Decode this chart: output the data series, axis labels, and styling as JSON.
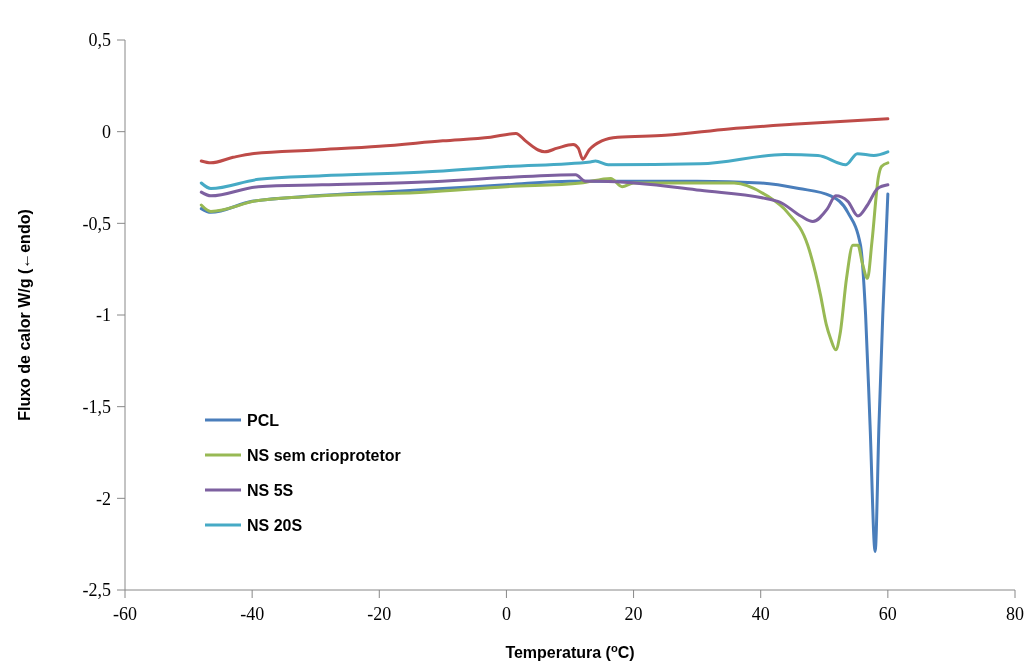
{
  "chart_data": {
    "type": "line",
    "xlabel": "Temperatura ($^{o}$C)",
    "ylabel": "Fluxo de calor W/g (←endo)",
    "xlim": [
      -60,
      80
    ],
    "xticks": [
      -60,
      -40,
      -20,
      0,
      20,
      40,
      60,
      80
    ],
    "ylim": [
      -2.5,
      0.5
    ],
    "yticks": [
      {
        "value": -2.5,
        "label": "-2,5"
      },
      {
        "value": -2,
        "label": "-2"
      },
      {
        "value": -1.5,
        "label": "-1,5"
      },
      {
        "value": -1,
        "label": "-1"
      },
      {
        "value": -0.5,
        "label": "-0,5"
      },
      {
        "value": 0,
        "label": "0"
      },
      {
        "value": 0.5,
        "label": "0,5"
      }
    ],
    "grid": false,
    "legend": "bottom left",
    "marker": "none",
    "line_style": "solid",
    "series": [
      {
        "name": "PCL",
        "color": "#4a7ebb",
        "x": [
          -48,
          -46.5,
          -40,
          -30,
          -20,
          -10,
          0,
          10,
          20,
          30,
          40,
          46,
          51,
          53.7,
          55.7,
          56.5,
          57.2,
          58,
          58.6,
          59.2,
          60
        ],
        "values": [
          -0.42,
          -0.44,
          -0.38,
          -0.35,
          -0.33,
          -0.31,
          -0.29,
          -0.27,
          -0.27,
          -0.27,
          -0.28,
          -0.31,
          -0.35,
          -0.44,
          -0.62,
          -1.0,
          -1.6,
          -2.29,
          -1.6,
          -1.0,
          -0.34
        ]
      },
      {
        "color": "#be4b48",
        "x": [
          -48,
          -46.5,
          -43,
          -40,
          -30,
          -20,
          -10,
          -2.5,
          1.5,
          3,
          5,
          6,
          8,
          10.5,
          11.3,
          12,
          13,
          15,
          17.5,
          25,
          35,
          45,
          60
        ],
        "values": [
          -0.16,
          -0.17,
          -0.14,
          -0.12,
          -0.1,
          -0.08,
          -0.05,
          -0.03,
          -0.01,
          -0.05,
          -0.1,
          -0.11,
          -0.09,
          -0.07,
          -0.09,
          -0.15,
          -0.1,
          -0.05,
          -0.03,
          -0.02,
          0.015,
          0.04,
          0.07
        ]
      },
      {
        "name": "NS sem crioprotetor",
        "color": "#98b954",
        "x": [
          -48,
          -46.5,
          -39,
          -29,
          -13,
          0,
          11.7,
          16.4,
          18.2,
          20,
          35.8,
          41,
          44.2,
          47.4,
          49.4,
          50.3,
          51,
          51.8,
          52.5,
          53.5,
          54.5,
          55.3,
          56,
          56.8,
          57.5,
          58.5,
          59,
          60
        ],
        "values": [
          -0.4,
          -0.435,
          -0.375,
          -0.35,
          -0.33,
          -0.3,
          -0.28,
          -0.255,
          -0.3,
          -0.28,
          -0.28,
          -0.35,
          -0.44,
          -0.62,
          -0.89,
          -1.05,
          -1.13,
          -1.19,
          -1.1,
          -0.8,
          -0.62,
          -0.62,
          -0.72,
          -0.8,
          -0.6,
          -0.25,
          -0.19,
          -0.17
        ]
      },
      {
        "name": "NS 5S",
        "color": "#7d60a0",
        "x": [
          -48,
          -46.5,
          -39,
          -29,
          -13,
          0,
          10.9,
          12.4,
          14.8,
          30.5,
          42.7,
          46.3,
          48.2,
          50.5,
          51.8,
          53.7,
          55.3,
          56.8,
          58.4,
          60
        ],
        "values": [
          -0.33,
          -0.35,
          -0.3,
          -0.29,
          -0.275,
          -0.25,
          -0.235,
          -0.27,
          -0.27,
          -0.32,
          -0.38,
          -0.46,
          -0.49,
          -0.42,
          -0.35,
          -0.38,
          -0.46,
          -0.4,
          -0.31,
          -0.29
        ]
      },
      {
        "name": "NS 20S",
        "color": "#46aac5",
        "x": [
          -48,
          -46.5,
          -39,
          -29,
          -13,
          0,
          13.2,
          14,
          16,
          30.5,
          43.7,
          49,
          53.4,
          55.2,
          57.8,
          60
        ],
        "values": [
          -0.28,
          -0.31,
          -0.26,
          -0.24,
          -0.22,
          -0.19,
          -0.165,
          -0.16,
          -0.18,
          -0.175,
          -0.125,
          -0.13,
          -0.18,
          -0.12,
          -0.13,
          -0.11
        ]
      }
    ]
  }
}
